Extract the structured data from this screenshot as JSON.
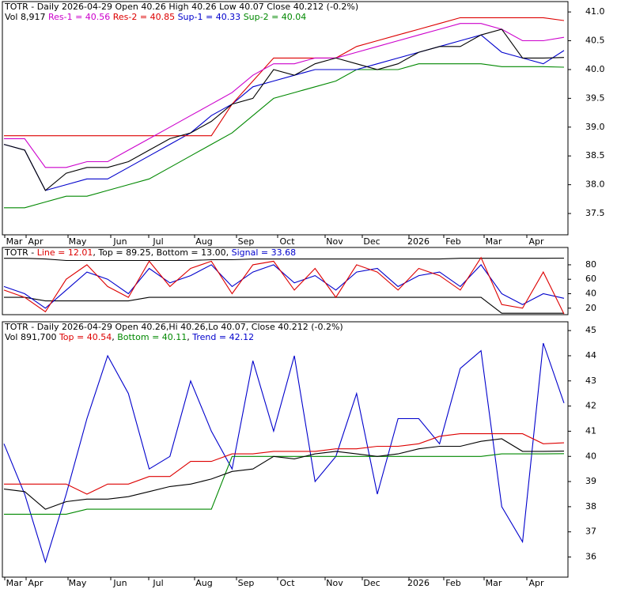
{
  "chart_data": [
    {
      "type": "line",
      "header": [
        [
          {
            "text": "TOTR - Daily 2026-04-29 Open 40.26  High 40.26  Low 40.07  Close 40.212 (-0.2%)",
            "color": "#000000"
          }
        ],
        [
          {
            "text": "Vol 8,917  ",
            "color": "#000000"
          },
          {
            "text": "Res-1 = 40.56  ",
            "color": "#cc00cc"
          },
          {
            "text": "Res-2 = 40.85  ",
            "color": "#dd0000"
          },
          {
            "text": "Sup-1 = 40.33  ",
            "color": "#0000cc"
          },
          {
            "text": "Sup-2 = 40.04",
            "color": "#008800"
          }
        ]
      ],
      "x_labels": [
        "Mar",
        "Apr",
        "May",
        "Jun",
        "Jul",
        "Aug",
        "Sep",
        "Oct",
        "Nov",
        "Dec",
        "2026",
        "Feb",
        "Mar",
        "Apr"
      ],
      "ylim": [
        37.13,
        41.18
      ],
      "yticks": [
        {
          "value": 41,
          "label": "41.0"
        },
        {
          "value": 40.5,
          "label": "40.5"
        },
        {
          "value": 40,
          "label": "40.0"
        },
        {
          "value": 39.5,
          "label": "39.5"
        },
        {
          "value": 39,
          "label": "39.0"
        },
        {
          "value": 38.5,
          "label": "38.5"
        },
        {
          "value": 38,
          "label": "38.0"
        },
        {
          "value": 37.5,
          "label": "37.5"
        }
      ],
      "series": [
        {
          "color": "#008800",
          "values": [
            37.6,
            37.6,
            37.7,
            37.8,
            37.8,
            37.9,
            38.0,
            38.1,
            38.3,
            38.5,
            38.7,
            38.9,
            39.2,
            39.5,
            39.6,
            39.7,
            39.8,
            40.0,
            40.0,
            40.0,
            40.1,
            40.1,
            40.1,
            40.1,
            40.05,
            40.05,
            40.05,
            40.04
          ]
        },
        {
          "color": "#0000cc",
          "values": [
            38.7,
            38.6,
            37.9,
            38.0,
            38.1,
            38.1,
            38.3,
            38.5,
            38.7,
            38.9,
            39.2,
            39.4,
            39.7,
            39.8,
            39.9,
            40.0,
            40.0,
            40.0,
            40.1,
            40.2,
            40.3,
            40.4,
            40.5,
            40.6,
            40.3,
            40.2,
            40.1,
            40.33
          ]
        },
        {
          "color": "#dd0000",
          "values": [
            38.85,
            38.85,
            38.85,
            38.85,
            38.85,
            38.85,
            38.85,
            38.85,
            38.85,
            38.85,
            38.85,
            39.4,
            39.8,
            40.2,
            40.2,
            40.2,
            40.2,
            40.4,
            40.5,
            40.6,
            40.7,
            40.8,
            40.9,
            40.9,
            40.9,
            40.9,
            40.9,
            40.85
          ]
        },
        {
          "color": "#cc00cc",
          "values": [
            38.8,
            38.8,
            38.3,
            38.3,
            38.4,
            38.4,
            38.6,
            38.8,
            39.0,
            39.2,
            39.4,
            39.6,
            39.9,
            40.1,
            40.1,
            40.2,
            40.2,
            40.3,
            40.4,
            40.5,
            40.6,
            40.7,
            40.8,
            40.8,
            40.7,
            40.5,
            40.5,
            40.56
          ]
        },
        {
          "color": "#000000",
          "values": [
            38.7,
            38.6,
            37.9,
            38.2,
            38.3,
            38.3,
            38.4,
            38.6,
            38.8,
            38.9,
            39.1,
            39.4,
            39.5,
            40.0,
            39.9,
            40.1,
            40.2,
            40.1,
            40.0,
            40.1,
            40.3,
            40.4,
            40.4,
            40.6,
            40.7,
            40.2,
            40.2,
            40.21
          ]
        }
      ]
    },
    {
      "type": "line",
      "header": [
        [
          {
            "text": "TOTR - ",
            "color": "#000000"
          },
          {
            "text": "Line = 12.01",
            "color": "#dd0000"
          },
          {
            "text": ", Top = 89.25, Bottom = 13.00, ",
            "color": "#000000"
          },
          {
            "text": "Signal = 33.68",
            "color": "#0000cc"
          }
        ]
      ],
      "ylim": [
        11,
        104
      ],
      "yticks": [
        80,
        60,
        40,
        20
      ],
      "series": [
        {
          "color": "#000000",
          "values": [
            89,
            89,
            88,
            86,
            86,
            86,
            86,
            86,
            86,
            86,
            87,
            87,
            88,
            88,
            88,
            88,
            88,
            88,
            88,
            88,
            88,
            88,
            89,
            89,
            89,
            89,
            89,
            89.25
          ]
        },
        {
          "color": "#000000",
          "values": [
            35,
            35,
            30,
            30,
            30,
            30,
            30,
            35,
            35,
            35,
            35,
            35,
            35,
            35,
            35,
            35,
            35,
            35,
            35,
            35,
            35,
            35,
            35,
            35,
            13,
            13,
            13,
            13
          ]
        },
        {
          "color": "#0000cc",
          "values": [
            50,
            40,
            20,
            45,
            70,
            60,
            40,
            75,
            55,
            65,
            80,
            50,
            70,
            80,
            55,
            65,
            45,
            70,
            75,
            50,
            65,
            70,
            50,
            80,
            40,
            25,
            40,
            33.68
          ]
        },
        {
          "color": "#dd0000",
          "values": [
            45,
            35,
            15,
            60,
            80,
            50,
            35,
            85,
            50,
            75,
            85,
            40,
            80,
            85,
            45,
            75,
            35,
            80,
            70,
            45,
            75,
            65,
            45,
            90,
            25,
            20,
            70,
            12.01
          ]
        }
      ]
    },
    {
      "type": "line",
      "header": [
        [
          {
            "text": "TOTR - Daily 2026-04-29 Open 40.26,Hi 40.26,Lo 40.07, Close 40.212 (-0.2%)",
            "color": "#000000"
          }
        ],
        [
          {
            "text": "Vol 891,700  ",
            "color": "#000000"
          },
          {
            "text": "Top = 40.54",
            "color": "#dd0000"
          },
          {
            "text": ", ",
            "color": "#000000"
          },
          {
            "text": "Bottom = 40.11",
            "color": "#008800"
          },
          {
            "text": ", ",
            "color": "#000000"
          },
          {
            "text": "Trend = 42.12",
            "color": "#0000cc"
          }
        ]
      ],
      "x_labels": [
        "Mar",
        "Apr",
        "May",
        "Jun",
        "Jul",
        "Aug",
        "Sep",
        "Oct",
        "Nov",
        "Dec",
        "2026",
        "Feb",
        "Mar",
        "Apr"
      ],
      "ylim": [
        35.2,
        45.35
      ],
      "yticks": [
        45,
        44,
        43,
        42,
        41,
        40,
        39,
        38,
        37,
        36
      ],
      "series": [
        {
          "color": "#0000cc",
          "values": [
            40.5,
            38.5,
            35.8,
            38.5,
            41.5,
            44,
            42.5,
            39.5,
            40,
            43,
            41,
            39.5,
            43.8,
            41,
            44,
            39,
            40,
            42.5,
            38.5,
            41.5,
            41.5,
            40.5,
            43.5,
            44.2,
            38,
            36.6,
            44.5,
            42.12
          ]
        },
        {
          "color": "#dd0000",
          "values": [
            38.9,
            38.9,
            38.9,
            38.9,
            38.5,
            38.9,
            38.9,
            39.2,
            39.2,
            39.8,
            39.8,
            40.1,
            40.1,
            40.2,
            40.2,
            40.2,
            40.3,
            40.3,
            40.4,
            40.4,
            40.5,
            40.8,
            40.9,
            40.9,
            40.9,
            40.9,
            40.5,
            40.54
          ]
        },
        {
          "color": "#008800",
          "values": [
            37.7,
            37.7,
            37.7,
            37.7,
            37.9,
            37.9,
            37.9,
            37.9,
            37.9,
            37.9,
            37.9,
            40.0,
            40.0,
            40.0,
            40.0,
            40.0,
            40.0,
            40.0,
            40.0,
            40.0,
            40.0,
            40.0,
            40.0,
            40.0,
            40.1,
            40.1,
            40.1,
            40.11
          ]
        },
        {
          "color": "#000000",
          "values": [
            38.7,
            38.6,
            37.9,
            38.2,
            38.3,
            38.3,
            38.4,
            38.6,
            38.8,
            38.9,
            39.1,
            39.4,
            39.5,
            40.0,
            39.9,
            40.1,
            40.2,
            40.1,
            40.0,
            40.1,
            40.3,
            40.4,
            40.4,
            40.6,
            40.7,
            40.2,
            40.2,
            40.21
          ]
        }
      ]
    }
  ]
}
